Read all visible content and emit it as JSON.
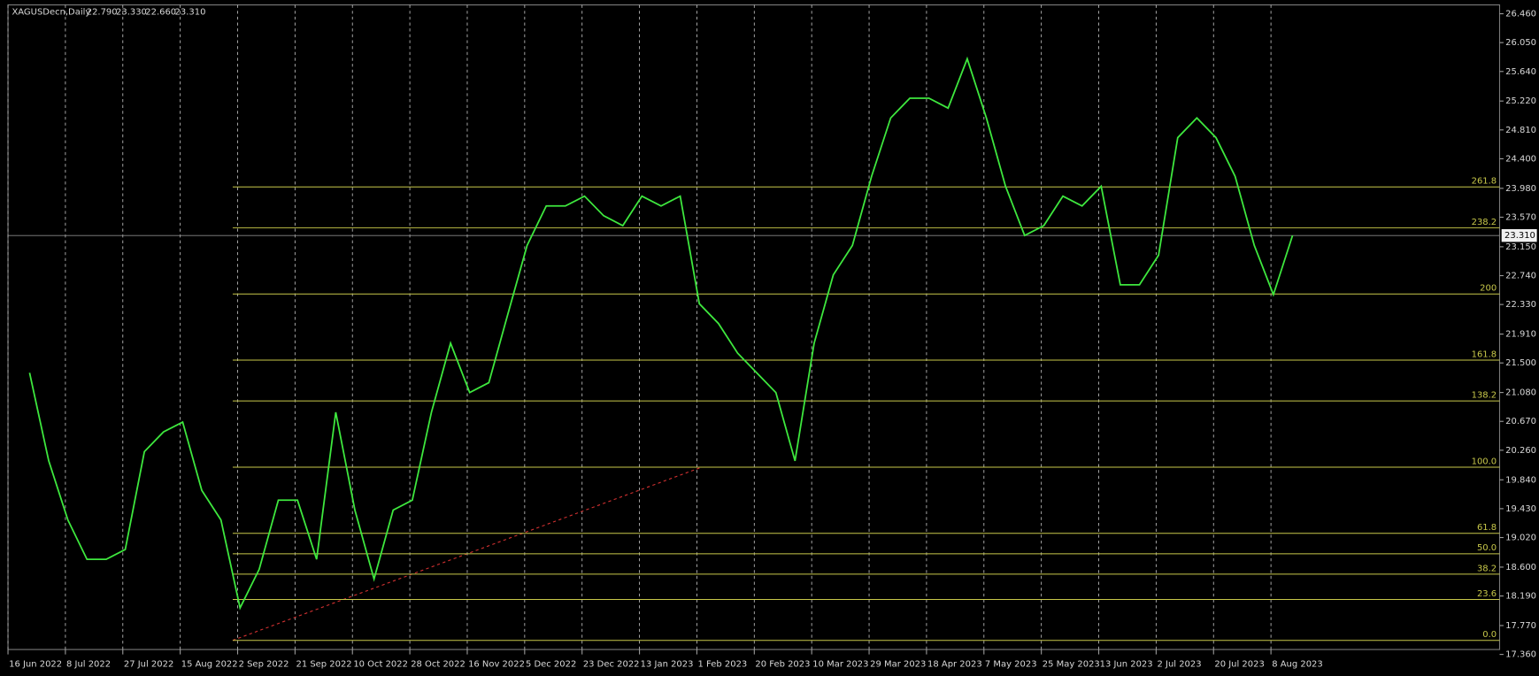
{
  "chart_data": {
    "type": "line",
    "title": "XAGUSDecn,Daily",
    "header_values": [
      22.79,
      23.33,
      22.66,
      23.31
    ],
    "header_value_labels": [
      "22.790",
      "23.330",
      "22.660",
      "23.310"
    ],
    "categories": [
      "16 Jun 2022",
      null,
      null,
      "8 Jul 2022",
      null,
      null,
      "27 Jul 2022",
      null,
      null,
      "15 Aug 2022",
      null,
      null,
      "2 Sep 2022",
      null,
      null,
      "21 Sep 2022",
      null,
      null,
      "10 Oct 2022",
      null,
      null,
      "28 Oct 2022",
      null,
      null,
      "16 Nov 2022",
      null,
      null,
      "5 Dec 2022",
      null,
      null,
      "23 Dec 2022",
      null,
      null,
      "13 Jan 2023",
      null,
      null,
      "1 Feb 2023",
      null,
      null,
      "20 Feb 2023",
      null,
      null,
      "10 Mar 2023",
      null,
      null,
      "29 Mar 2023",
      null,
      null,
      "18 Apr 2023",
      null,
      null,
      "7 May 2023",
      null,
      null,
      "25 May 2023",
      null,
      null,
      "13 Jun 2023",
      null,
      null,
      "2 Jul 2023",
      null,
      null,
      "20 Jul 2023",
      null,
      null,
      "8 Aug 2023"
    ],
    "values": [
      21.36,
      20.11,
      19.27,
      18.71,
      18.71,
      18.85,
      20.24,
      20.52,
      20.66,
      19.69,
      19.27,
      18.02,
      18.57,
      19.55,
      19.55,
      18.71,
      20.8,
      19.41,
      18.43,
      19.41,
      19.55,
      20.8,
      21.78,
      21.08,
      21.22,
      22.2,
      23.17,
      23.73,
      23.73,
      23.87,
      23.59,
      23.45,
      23.87,
      23.73,
      23.87,
      22.34,
      22.06,
      21.64,
      21.36,
      21.08,
      20.11,
      21.78,
      22.75,
      23.17,
      24.15,
      24.98,
      25.26,
      25.26,
      25.12,
      25.82,
      24.98,
      24.01,
      23.31,
      23.45,
      23.87,
      23.73,
      24.01,
      22.61,
      22.61,
      23.03,
      24.7,
      24.98,
      24.7,
      24.15,
      23.17,
      22.47,
      23.31
    ],
    "color": "#3ee83e",
    "ylim": [
      17.36,
      26.46
    ],
    "yticks": [
      {
        "value": 17.36,
        "label": "17.360"
      },
      {
        "value": 17.77,
        "label": "17.770"
      },
      {
        "value": 18.19,
        "label": "18.190"
      },
      {
        "value": 18.6,
        "label": "18.600"
      },
      {
        "value": 19.02,
        "label": "19.020"
      },
      {
        "value": 19.43,
        "label": "19.430"
      },
      {
        "value": 19.84,
        "label": "19.840"
      },
      {
        "value": 20.26,
        "label": "20.260"
      },
      {
        "value": 20.67,
        "label": "20.670"
      },
      {
        "value": 21.08,
        "label": "21.080"
      },
      {
        "value": 21.5,
        "label": "21.500"
      },
      {
        "value": 21.91,
        "label": "21.910"
      },
      {
        "value": 22.33,
        "label": "22.330"
      },
      {
        "value": 22.74,
        "label": "22.740"
      },
      {
        "value": 23.15,
        "label": "23.150"
      },
      {
        "value": 23.57,
        "label": "23.570"
      },
      {
        "value": 23.98,
        "label": "23.980"
      },
      {
        "value": 24.4,
        "label": "24.400"
      },
      {
        "value": 24.81,
        "label": "24.810"
      },
      {
        "value": 25.22,
        "label": "25.220"
      },
      {
        "value": 25.64,
        "label": "25.640"
      },
      {
        "value": 26.05,
        "label": "26.050"
      },
      {
        "value": 26.46,
        "label": "26.460"
      }
    ],
    "last_price": 23.31,
    "last_price_label": "23.310",
    "grid": true,
    "fibonacci": {
      "price_0": 17.56,
      "price_100": 20.02,
      "levels": [
        0,
        23.6,
        38.2,
        50,
        61.8,
        100,
        138.2,
        161.8,
        200,
        238.2,
        261.8
      ],
      "level_labels": [
        "0.0",
        "23.6",
        "38.2",
        "50.0",
        "61.8",
        "100.0",
        "138.2",
        "161.8",
        "200",
        "238.2",
        "261.8"
      ],
      "color": "#c8c84a",
      "trend_color": "#d03030"
    }
  }
}
